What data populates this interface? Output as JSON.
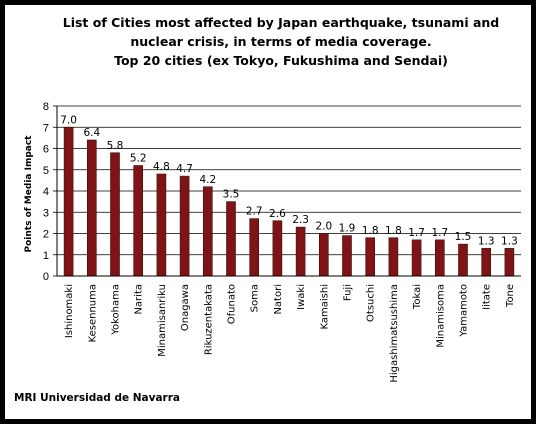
{
  "chart_data": {
    "type": "bar",
    "title_lines": [
      "List of Cities most affected by Japan earthquake, tsunami and",
      "nuclear crisis, in terms of media coverage.",
      "Top 20 cities (ex Tokyo, Fukushima and Sendai)"
    ],
    "xlabel": "",
    "ylabel": "Points of Media Impact",
    "ylim": [
      0,
      8
    ],
    "yticks": [
      "0",
      "1",
      "2",
      "3",
      "4",
      "5",
      "6",
      "7",
      "8"
    ],
    "grid": true,
    "legend": false,
    "bar_color": "#7f1416",
    "categories": [
      "Ishinomaki",
      "Kesennuma",
      "Yokohama",
      "Narita",
      "Minamisanriku",
      "Onagawa",
      "Rikuzentakata",
      "Ofunato",
      "Soma",
      "Natori",
      "Iwaki",
      "Kamaishi",
      "Fuji",
      "Otsuchi",
      "Higashimatsushima",
      "Tokai",
      "Minamisoma",
      "Yamamoto",
      "Iitate",
      "Tone"
    ],
    "values": [
      7.0,
      6.4,
      5.8,
      5.2,
      4.8,
      4.7,
      4.2,
      3.5,
      2.7,
      2.6,
      2.3,
      2.0,
      1.9,
      1.8,
      1.8,
      1.7,
      1.7,
      1.5,
      1.3,
      1.3
    ],
    "value_labels": [
      "7.0",
      "6.4",
      "5.8",
      "5.2",
      "4.8",
      "4.7",
      "4.2",
      "3.5",
      "2.7",
      "2.6",
      "2.3",
      "2.0",
      "1.9",
      "1.8",
      "1.8",
      "1.7",
      "1.7",
      "1.5",
      "1.3",
      "1.3"
    ]
  },
  "source": "MRI Universidad de Navarra"
}
